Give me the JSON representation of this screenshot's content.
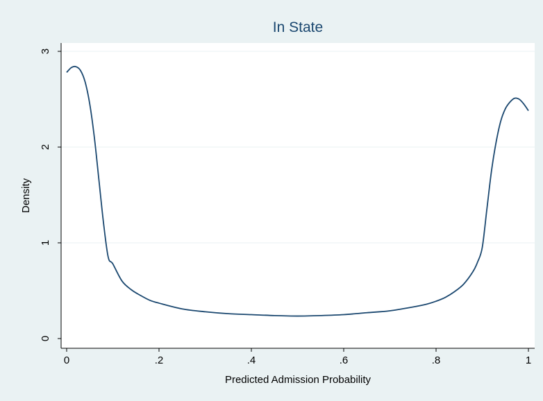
{
  "chart_data": {
    "type": "line",
    "title": "In State",
    "xlabel": "Predicted Admission Probability",
    "ylabel": "Density",
    "xlim": [
      0,
      1
    ],
    "ylim": [
      0,
      3
    ],
    "x_ticks": [
      0,
      0.2,
      0.4,
      0.6,
      0.8,
      1
    ],
    "x_tick_labels": [
      "0",
      ".2",
      ".4",
      ".6",
      ".8",
      "1"
    ],
    "y_ticks": [
      0,
      1,
      2,
      3
    ],
    "y_tick_labels": [
      "0",
      "1",
      "2",
      "3"
    ],
    "grid": "horizontal",
    "series": [
      {
        "color": "#1a476f",
        "x": [
          0.0,
          0.01,
          0.02,
          0.03,
          0.04,
          0.05,
          0.06,
          0.07,
          0.08,
          0.09,
          0.1,
          0.12,
          0.14,
          0.16,
          0.18,
          0.2,
          0.25,
          0.3,
          0.35,
          0.4,
          0.45,
          0.5,
          0.55,
          0.6,
          0.65,
          0.7,
          0.75,
          0.78,
          0.8,
          0.82,
          0.84,
          0.86,
          0.88,
          0.89,
          0.9,
          0.91,
          0.92,
          0.93,
          0.94,
          0.95,
          0.96,
          0.97,
          0.98,
          0.99,
          1.0
        ],
        "y": [
          2.78,
          2.83,
          2.84,
          2.8,
          2.68,
          2.45,
          2.1,
          1.65,
          1.2,
          0.85,
          0.78,
          0.6,
          0.51,
          0.45,
          0.4,
          0.37,
          0.31,
          0.28,
          0.26,
          0.25,
          0.24,
          0.235,
          0.24,
          0.25,
          0.27,
          0.29,
          0.33,
          0.36,
          0.39,
          0.43,
          0.49,
          0.57,
          0.7,
          0.8,
          0.95,
          1.35,
          1.75,
          2.05,
          2.27,
          2.4,
          2.47,
          2.51,
          2.5,
          2.45,
          2.38
        ]
      }
    ]
  }
}
